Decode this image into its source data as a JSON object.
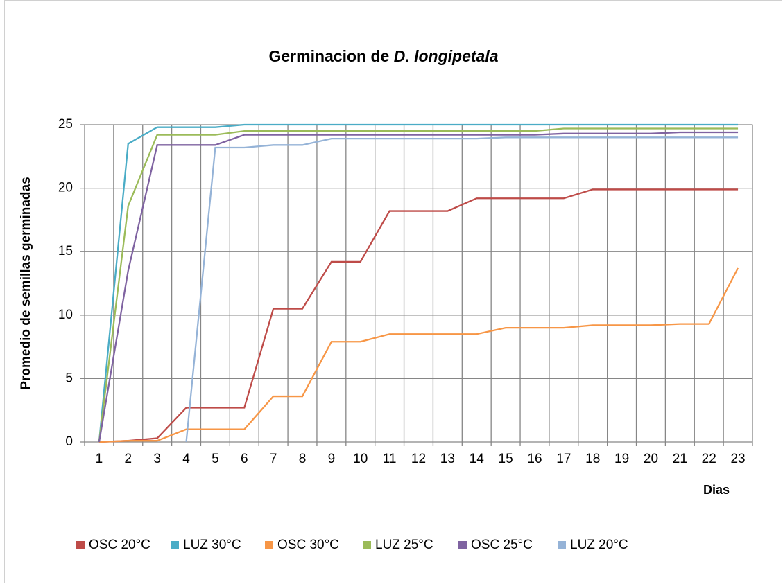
{
  "chart_data": {
    "type": "line",
    "title": [
      "Germinacion de",
      "D. longipetala"
    ],
    "x_label": "Dias",
    "y_label": "Promedio de semillas germinadas",
    "categories": [
      "1",
      "2",
      "3",
      "4",
      "5",
      "6",
      "7",
      "8",
      "9",
      "10",
      "11",
      "12",
      "13",
      "14",
      "15",
      "16",
      "17",
      "18",
      "19",
      "20",
      "21",
      "22",
      "23"
    ],
    "ylim": [
      0,
      25
    ],
    "yticks": [
      0,
      5,
      10,
      15,
      20,
      25
    ],
    "grid": true,
    "legend": "bottom",
    "series": [
      {
        "name": "OSC 20°C",
        "color": "#be4b48",
        "values": [
          0,
          0.1,
          0.3,
          2.7,
          2.7,
          2.7,
          10.5,
          10.5,
          14.2,
          14.2,
          18.2,
          18.2,
          18.2,
          19.2,
          19.2,
          19.2,
          19.2,
          19.9,
          19.9,
          19.9,
          19.9,
          19.9,
          19.9
        ]
      },
      {
        "name": "LUZ 30°C",
        "color": "#4aacc6",
        "values": [
          0,
          23.5,
          24.8,
          24.8,
          24.8,
          25,
          25,
          25,
          25,
          25,
          25,
          25,
          25,
          25,
          25,
          25,
          25,
          25,
          25,
          25,
          25,
          25,
          25
        ]
      },
      {
        "name": "OSC 30°C",
        "color": "#f79646",
        "values": [
          0,
          0.1,
          0.1,
          1,
          1,
          1,
          3.6,
          3.6,
          7.9,
          7.9,
          8.5,
          8.5,
          8.5,
          8.5,
          9,
          9,
          9,
          9.2,
          9.2,
          9.2,
          9.3,
          9.3,
          13.7
        ]
      },
      {
        "name": "LUZ 25°C",
        "color": "#9bbb59",
        "values": [
          0,
          18.6,
          24.2,
          24.2,
          24.2,
          24.5,
          24.5,
          24.5,
          24.5,
          24.5,
          24.5,
          24.5,
          24.5,
          24.5,
          24.5,
          24.5,
          24.7,
          24.7,
          24.7,
          24.7,
          24.7,
          24.7,
          24.7
        ]
      },
      {
        "name": "OSC 25°C",
        "color": "#7f63a1",
        "values": [
          0,
          13.5,
          23.4,
          23.4,
          23.4,
          24.2,
          24.2,
          24.2,
          24.2,
          24.2,
          24.2,
          24.2,
          24.2,
          24.2,
          24.2,
          24.2,
          24.3,
          24.3,
          24.3,
          24.3,
          24.4,
          24.4,
          24.4
        ]
      },
      {
        "name": "LUZ 20°C",
        "color": "#95b3d7",
        "values": [
          null,
          null,
          null,
          0,
          23.2,
          23.2,
          23.4,
          23.4,
          23.9,
          23.9,
          23.9,
          23.9,
          23.9,
          23.9,
          24,
          24,
          24,
          24,
          24,
          24,
          24,
          24,
          24
        ]
      }
    ]
  }
}
